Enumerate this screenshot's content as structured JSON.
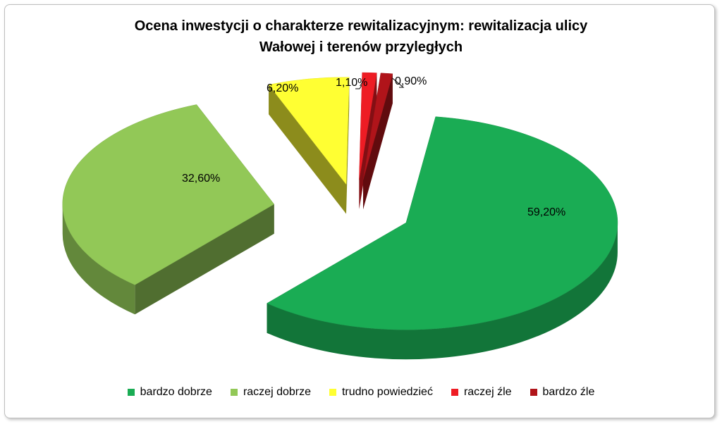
{
  "chart_data": {
    "type": "pie",
    "title_line1": "Ocena inwestycji o charakterze rewitalizacyjnym: rewitalizacja ulicy",
    "title_line2": "Wałowej i terenów przyległych",
    "categories": [
      "bardzo dobrze",
      "raczej dobrze",
      "trudno powiedzieć",
      "raczej źle",
      "bardzo źle"
    ],
    "values": [
      59.2,
      32.6,
      6.2,
      1.1,
      0.9
    ],
    "data_labels": [
      "59,20%",
      "32,60%",
      "6,20%",
      "1,10%",
      "0,90%"
    ],
    "colors": [
      "#1aac54",
      "#92c857",
      "#ffff33",
      "#ee1c24",
      "#b0141a"
    ],
    "legend_position": "bottom",
    "style": "3d-exploded"
  }
}
